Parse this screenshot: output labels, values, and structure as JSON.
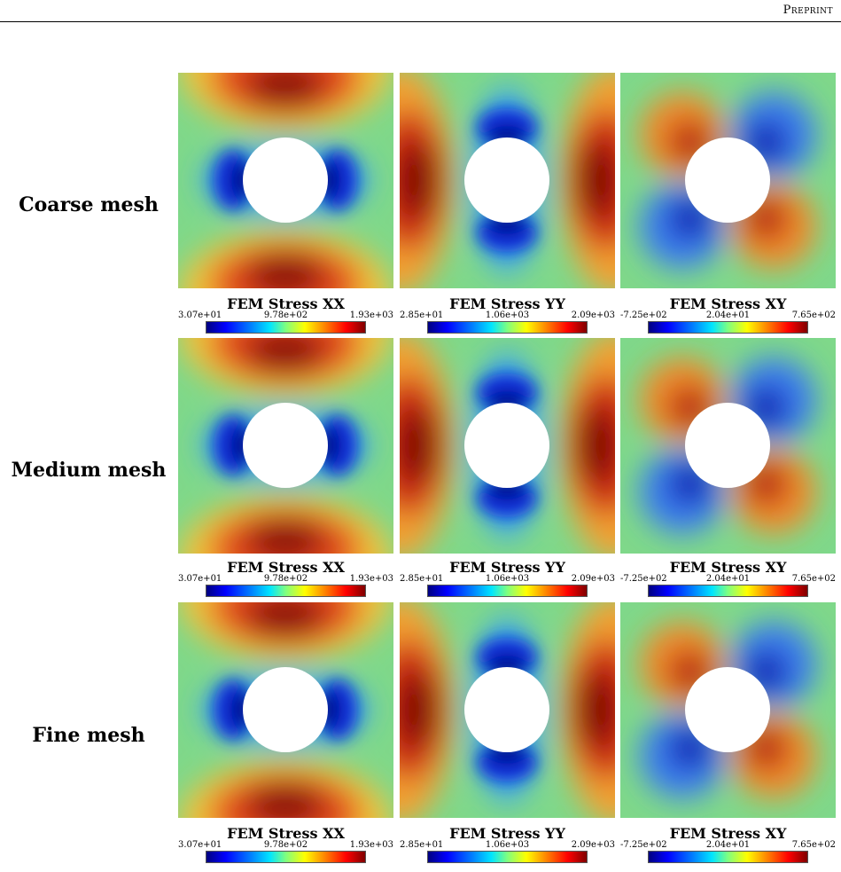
{
  "header": {
    "label": "Preprint"
  },
  "colormap": [
    "#00007f",
    "#0000ff",
    "#0080ff",
    "#00e5ff",
    "#7fff7f",
    "#ffff00",
    "#ff8000",
    "#ff0000",
    "#7f0000"
  ],
  "rows": [
    {
      "label": "Coarse mesh"
    },
    {
      "label": "Medium mesh"
    },
    {
      "label": "Fine mesh"
    }
  ],
  "components": [
    {
      "title": "FEM Stress XX",
      "min": "3.07e+01",
      "mid": "9.78e+02",
      "max": "1.93e+03"
    },
    {
      "title": "FEM Stress YY",
      "min": "2.85e+01",
      "mid": "1.06e+03",
      "max": "2.09e+03"
    },
    {
      "title": "FEM Stress XY",
      "min": "-7.25e+02",
      "mid": "2.04e+01",
      "max": "7.65e+02"
    }
  ]
}
